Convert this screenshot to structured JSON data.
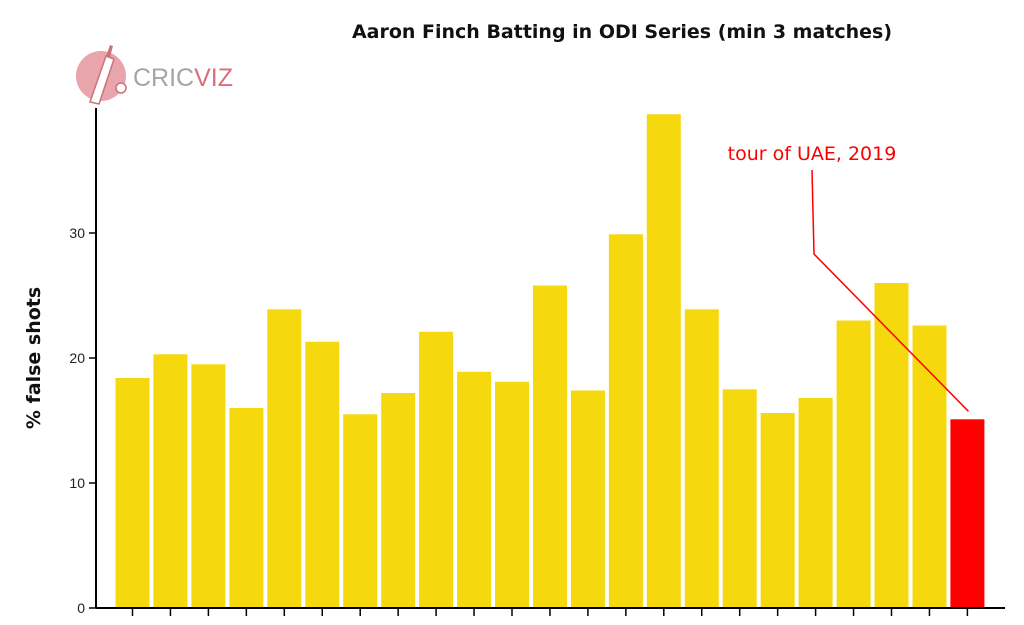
{
  "chart_data": {
    "type": "bar",
    "title": "Aaron Finch Batting in ODI Series (min 3 matches)",
    "ylabel": "% false shots",
    "xlabel": "",
    "ylim": [
      0,
      40
    ],
    "yticks": [
      0,
      10,
      20,
      30
    ],
    "grid": false,
    "values": [
      18.4,
      20.3,
      19.5,
      16.0,
      23.9,
      21.3,
      15.5,
      17.2,
      22.1,
      18.9,
      18.1,
      25.8,
      17.4,
      29.9,
      39.5,
      23.9,
      17.5,
      15.6,
      16.8,
      23.0,
      26.0,
      22.6,
      15.1
    ],
    "highlight_index": 22,
    "colors": {
      "bar": "#F5D80E",
      "highlight": "#FF0000",
      "axis": "#000000"
    },
    "annotation": {
      "text": "tour of UAE, 2019",
      "target_index": 22,
      "color": "#FF0000"
    }
  },
  "logo": {
    "text_a": "CRIC",
    "text_b": "VIZ",
    "icon": "cricket-bat-ball-icon",
    "color": "#D9707A"
  }
}
